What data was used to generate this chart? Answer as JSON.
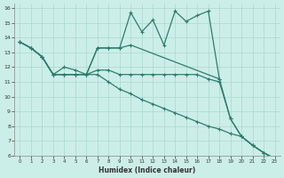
{
  "xlabel": "Humidex (Indice chaleur)",
  "bg_color": "#cceee8",
  "line_color": "#2e7d6e",
  "grid_color": "#aad8d0",
  "xlim": [
    -0.5,
    23.5
  ],
  "ylim": [
    6,
    16.3
  ],
  "xticks": [
    0,
    1,
    2,
    3,
    4,
    5,
    6,
    7,
    8,
    9,
    10,
    11,
    12,
    13,
    14,
    15,
    16,
    17,
    18,
    19,
    20,
    21,
    22,
    23
  ],
  "yticks": [
    6,
    7,
    8,
    9,
    10,
    11,
    12,
    13,
    14,
    15,
    16
  ],
  "line1_x": [
    0,
    1,
    2,
    3,
    4,
    5,
    6,
    7,
    8,
    9,
    10,
    11,
    12,
    13,
    14,
    15,
    16,
    17,
    18
  ],
  "line1_y": [
    13.7,
    13.3,
    12.7,
    11.5,
    11.5,
    11.5,
    11.5,
    13.3,
    13.3,
    13.3,
    15.7,
    14.4,
    15.2,
    13.5,
    15.8,
    15.1,
    15.5,
    15.8,
    11.2
  ],
  "line2_x": [
    0,
    1,
    2,
    3,
    4,
    5,
    6,
    7,
    8,
    9,
    10,
    18,
    19,
    20,
    21,
    22,
    23
  ],
  "line2_y": [
    13.7,
    13.3,
    12.7,
    11.5,
    11.5,
    11.5,
    11.5,
    13.3,
    13.3,
    13.3,
    13.5,
    11.2,
    8.5,
    7.3,
    6.7,
    6.2,
    5.8
  ],
  "line3_x": [
    0,
    1,
    2,
    3,
    4,
    5,
    6,
    7,
    8,
    9,
    10,
    11,
    12,
    13,
    14,
    15,
    16,
    17,
    18,
    19,
    20,
    21,
    22,
    23
  ],
  "line3_y": [
    13.7,
    13.3,
    12.7,
    11.5,
    12.0,
    11.8,
    11.5,
    11.8,
    11.8,
    11.5,
    11.5,
    11.5,
    11.5,
    11.5,
    11.5,
    11.5,
    11.5,
    11.2,
    11.0,
    8.5,
    7.3,
    6.7,
    6.2,
    5.8
  ],
  "line4_x": [
    0,
    1,
    2,
    3,
    4,
    5,
    6,
    7,
    8,
    9,
    10,
    11,
    12,
    13,
    14,
    15,
    16,
    17,
    18,
    19,
    20,
    21,
    22,
    23
  ],
  "line4_y": [
    13.7,
    13.3,
    12.7,
    11.5,
    11.5,
    11.5,
    11.5,
    11.5,
    11.0,
    10.5,
    10.2,
    9.8,
    9.5,
    9.2,
    8.9,
    8.6,
    8.3,
    8.0,
    7.8,
    7.5,
    7.3,
    6.7,
    6.2,
    5.8
  ]
}
